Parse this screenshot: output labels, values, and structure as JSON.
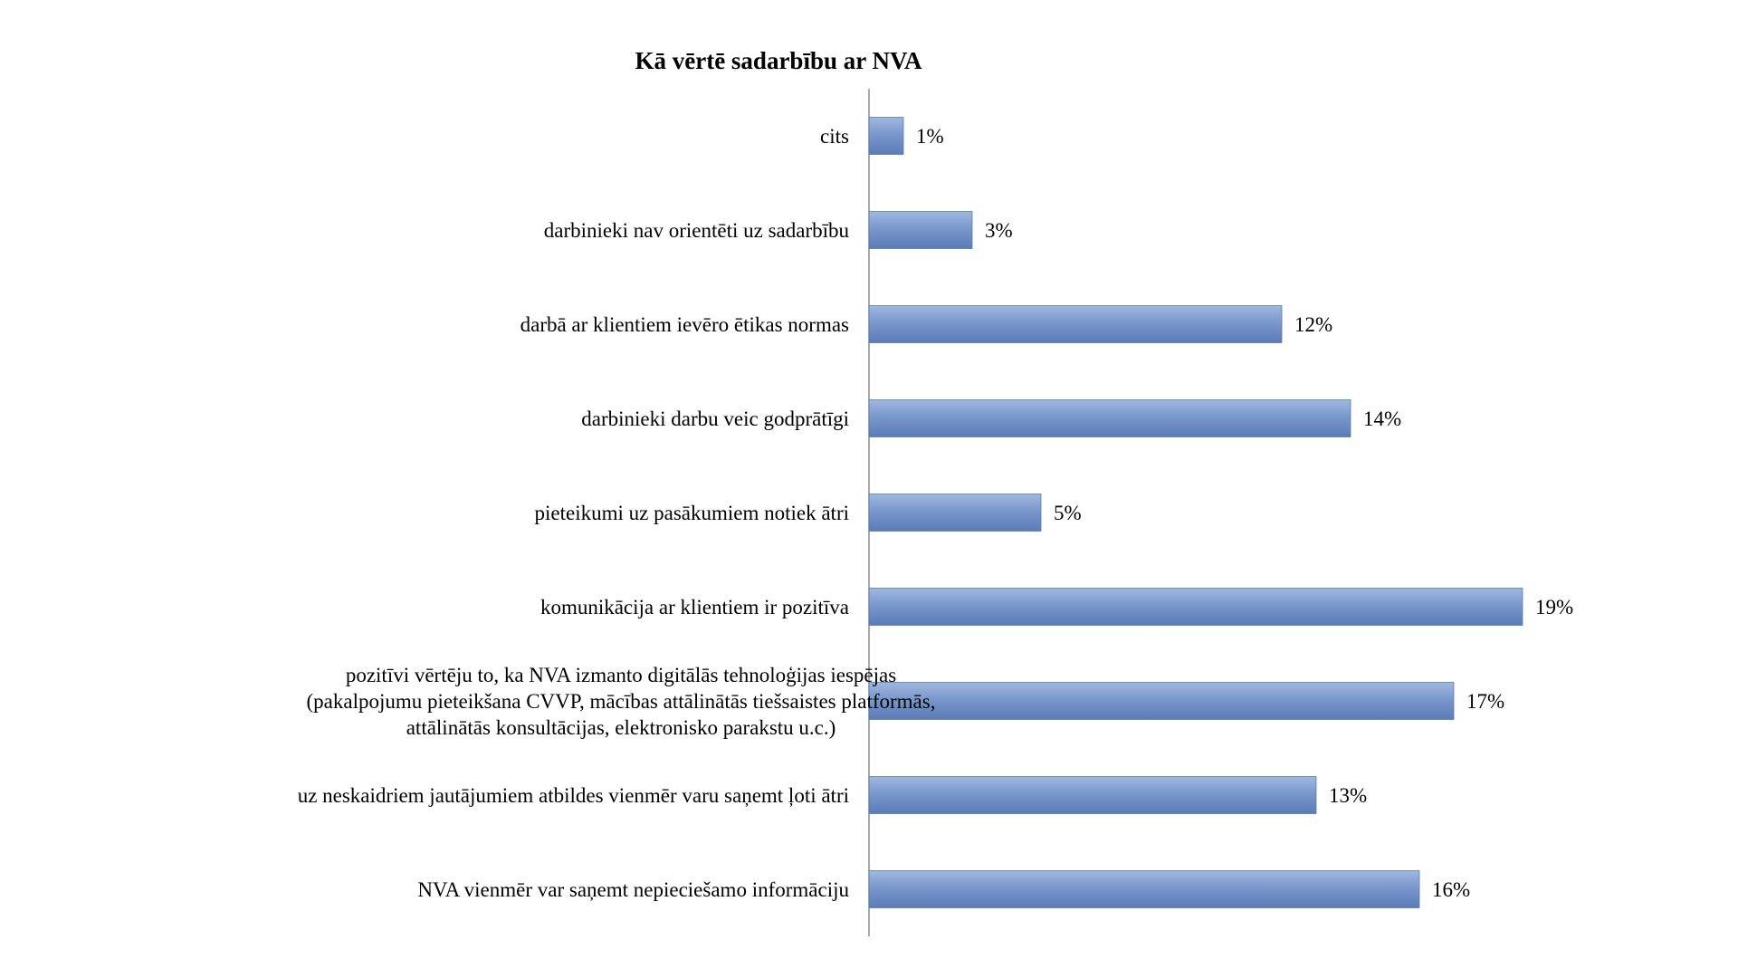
{
  "chart_data": {
    "type": "bar",
    "orientation": "horizontal",
    "title": "Kā vērtē sadarbību ar NVA",
    "xlabel": "",
    "ylabel": "",
    "unit": "%",
    "xlim": [
      0,
      20
    ],
    "grid": false,
    "legend": "none",
    "bar_color": "#7a98cc",
    "bar_color_light": "#9fb8e0",
    "bar_color_dark": "#5b7bb5",
    "categories": [
      [
        "cits"
      ],
      [
        "darbinieki nav orientēti uz sadarbību"
      ],
      [
        "darbā ar klientiem ievēro ētikas normas"
      ],
      [
        "darbinieki darbu veic godprātīgi"
      ],
      [
        "pieteikumi uz pasākumiem notiek ātri"
      ],
      [
        "komunikācija ar klientiem ir pozitīva"
      ],
      [
        "pozitīvi vērtēju to, ka NVA izmanto digitālās tehnoloģijas iespējas",
        "(pakalpojumu pieteikšana CVVP, mācības attālinātās tiešsaistes platformās,",
        "attālinātās konsultācijas, elektronisko parakstu u.c.)"
      ],
      [
        "uz neskaidriem jautājumiem atbildes vienmēr varu saņemt ļoti ātri"
      ],
      [
        "NVA vienmēr var saņemt nepieciešamo informāciju"
      ]
    ],
    "values": [
      1,
      3,
      12,
      14,
      5,
      19,
      17,
      13,
      16
    ],
    "value_labels": [
      "1%",
      "3%",
      "12%",
      "14%",
      "5%",
      "19%",
      "17%",
      "13%",
      "16%"
    ]
  }
}
